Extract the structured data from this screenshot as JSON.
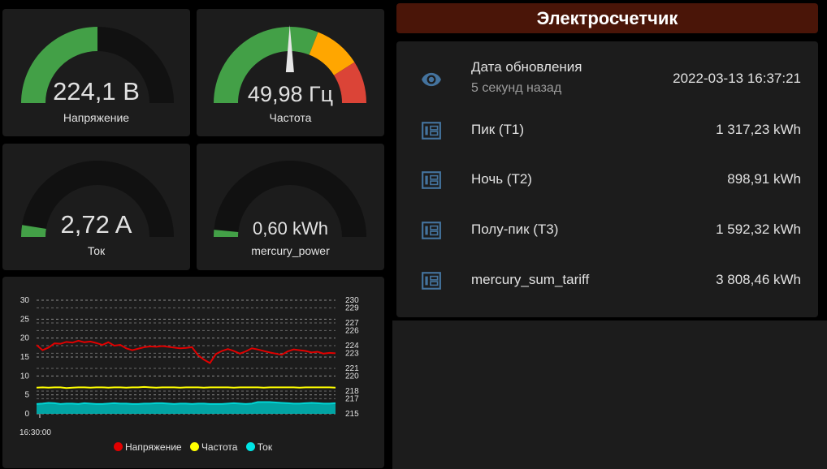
{
  "gauges": [
    {
      "value": "224,1 В",
      "label": "Напряжение",
      "level": 0.5
    },
    {
      "value": "49,98 Гц",
      "label": "Частота",
      "level": 0.499
    },
    {
      "value": "2,72 A",
      "label": "Ток",
      "level": 0.05
    },
    {
      "value": "0,60 kWh",
      "label": "mercury_power",
      "level": 0.03
    }
  ],
  "colors": {
    "green": "#43a047",
    "yellow": "#ffa600",
    "red": "#db4437",
    "track": "#111111",
    "header_bg": "#4a1508",
    "accent_icon": "#44739e"
  },
  "meter": {
    "title": "Электросчетчик",
    "updated": {
      "icon": "eye-icon",
      "name": "Дата обновления",
      "sub": "5 секунд назад",
      "value": "2022-03-13 16:37:21"
    },
    "rows": [
      {
        "icon": "meter-icon",
        "name": "Пик (T1)",
        "value": "1 317,23 kWh"
      },
      {
        "icon": "meter-icon",
        "name": "Ночь (T2)",
        "value": "898,91 kWh"
      },
      {
        "icon": "meter-icon",
        "name": "Полу-пик (T3)",
        "value": "1 592,32 kWh"
      },
      {
        "icon": "meter-icon",
        "name": "mercury_sum_tariff",
        "value": "3 808,46 kWh"
      }
    ]
  },
  "chart_data": {
    "type": "line",
    "x_label_start": "16:30:00",
    "y_left": {
      "ticks": [
        "30",
        "25",
        "20",
        "15",
        "10",
        "5",
        "0"
      ],
      "range": [
        0,
        30
      ]
    },
    "y_right": {
      "ticks": [
        "230",
        "229",
        "227",
        "226",
        "224",
        "223",
        "221",
        "220",
        "218",
        "217",
        "215"
      ],
      "range": [
        215,
        230
      ]
    },
    "series": [
      {
        "name": "Напряжение",
        "color": "#e00000",
        "axis": "left",
        "values": [
          18.2,
          16.8,
          17.5,
          18.6,
          18.5,
          19,
          18.8,
          19.3,
          18.9,
          19.1,
          18.7,
          18.2,
          18.9,
          18,
          18.2,
          17.3,
          16.8,
          17.2,
          17.6,
          17.8,
          17.7,
          17.9,
          17.7,
          17.5,
          17.3,
          17.4,
          17.6,
          15.5,
          14.3,
          13.4,
          15.8,
          16.6,
          17.1,
          16.6,
          15.9,
          16.5,
          17.3,
          17,
          16.6,
          16.2,
          15.9,
          15.6,
          16.5,
          17,
          16.8,
          16.6,
          16.2,
          16.4,
          15.9,
          16.1,
          16
        ]
      },
      {
        "name": "Частота",
        "color": "#ffff00",
        "axis": "left",
        "values": [
          6.9,
          7,
          6.9,
          7,
          7,
          6.8,
          6.9,
          7,
          7,
          6.9,
          7,
          7,
          6.9,
          7,
          7,
          6.9,
          7,
          7,
          7.1,
          7,
          6.9,
          7,
          7,
          7,
          6.9,
          7,
          7,
          7,
          6.9,
          7,
          7,
          7,
          7,
          6.9,
          7,
          7,
          7,
          7,
          6.9,
          7,
          7,
          7,
          7,
          7,
          6.9,
          7,
          7,
          7,
          7,
          7,
          6.9
        ]
      },
      {
        "name": "Ток",
        "color": "#00d4d4",
        "axis": "left",
        "values": [
          2.6,
          2.7,
          2.9,
          2.8,
          2.6,
          2.7,
          2.7,
          2.6,
          2.8,
          2.7,
          2.6,
          2.6,
          2.7,
          2.8,
          2.7,
          2.7,
          2.6,
          2.6,
          2.7,
          2.7,
          2.8,
          2.8,
          2.7,
          2.6,
          2.7,
          2.7,
          2.6,
          2.7,
          2.7,
          2.6,
          2.6,
          2.6,
          2.7,
          2.8,
          2.7,
          2.6,
          2.7,
          3.1,
          3.1,
          3.1,
          3,
          2.9,
          2.8,
          2.7,
          2.7,
          2.8,
          2.9,
          2.8,
          2.7,
          2.7,
          2.8
        ]
      }
    ]
  }
}
